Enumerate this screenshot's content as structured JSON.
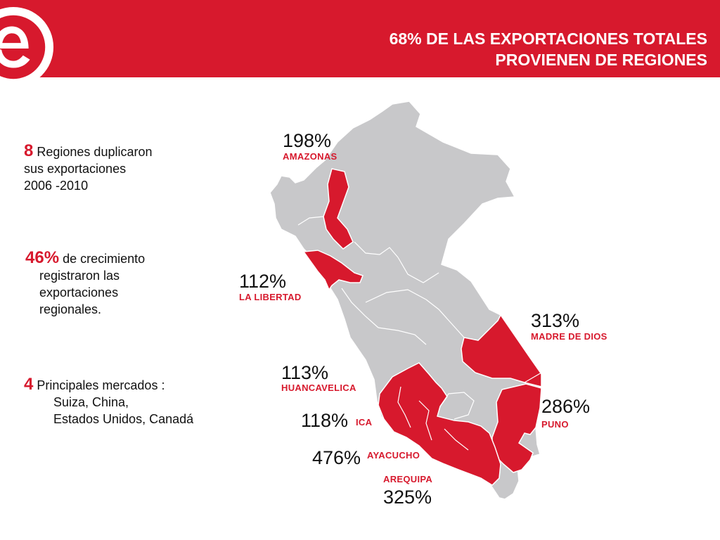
{
  "header": {
    "title_line1": "68% DE LAS EXPORTACIONES TOTALES",
    "title_line2": "PROVIENEN DE REGIONES",
    "logo_letter": "e",
    "brand_color": "#d7192d"
  },
  "stats": {
    "s1_num": "8",
    "s1_line1": "Regiones duplicaron",
    "s1_line2": "sus exportaciones",
    "s1_line3": "2006 -2010",
    "s2_num": "46%",
    "s2_line1": "de crecimiento",
    "s2_line2": "registraron las",
    "s2_line3": "exportaciones",
    "s2_line4": "regionales.",
    "s3_num": "4",
    "s3_line1": "Principales mercados :",
    "s3_line2": "Suiza, China,",
    "s3_line3": "Estados Unidos, Canadá"
  },
  "map": {
    "highlight_color": "#d7192d",
    "base_color": "#c8c8ca",
    "regions": [
      {
        "name": "AMAZONAS",
        "pct": "198%"
      },
      {
        "name": "LA LIBERTAD",
        "pct": "112%"
      },
      {
        "name": "MADRE DE DIOS",
        "pct": "313%"
      },
      {
        "name": "HUANCAVELICA",
        "pct": "113%"
      },
      {
        "name": "ICA",
        "pct": "118%"
      },
      {
        "name": "PUNO",
        "pct": "286%"
      },
      {
        "name": "AYACUCHO",
        "pct": "476%"
      },
      {
        "name": "AREQUIPA",
        "pct": "325%"
      }
    ]
  }
}
